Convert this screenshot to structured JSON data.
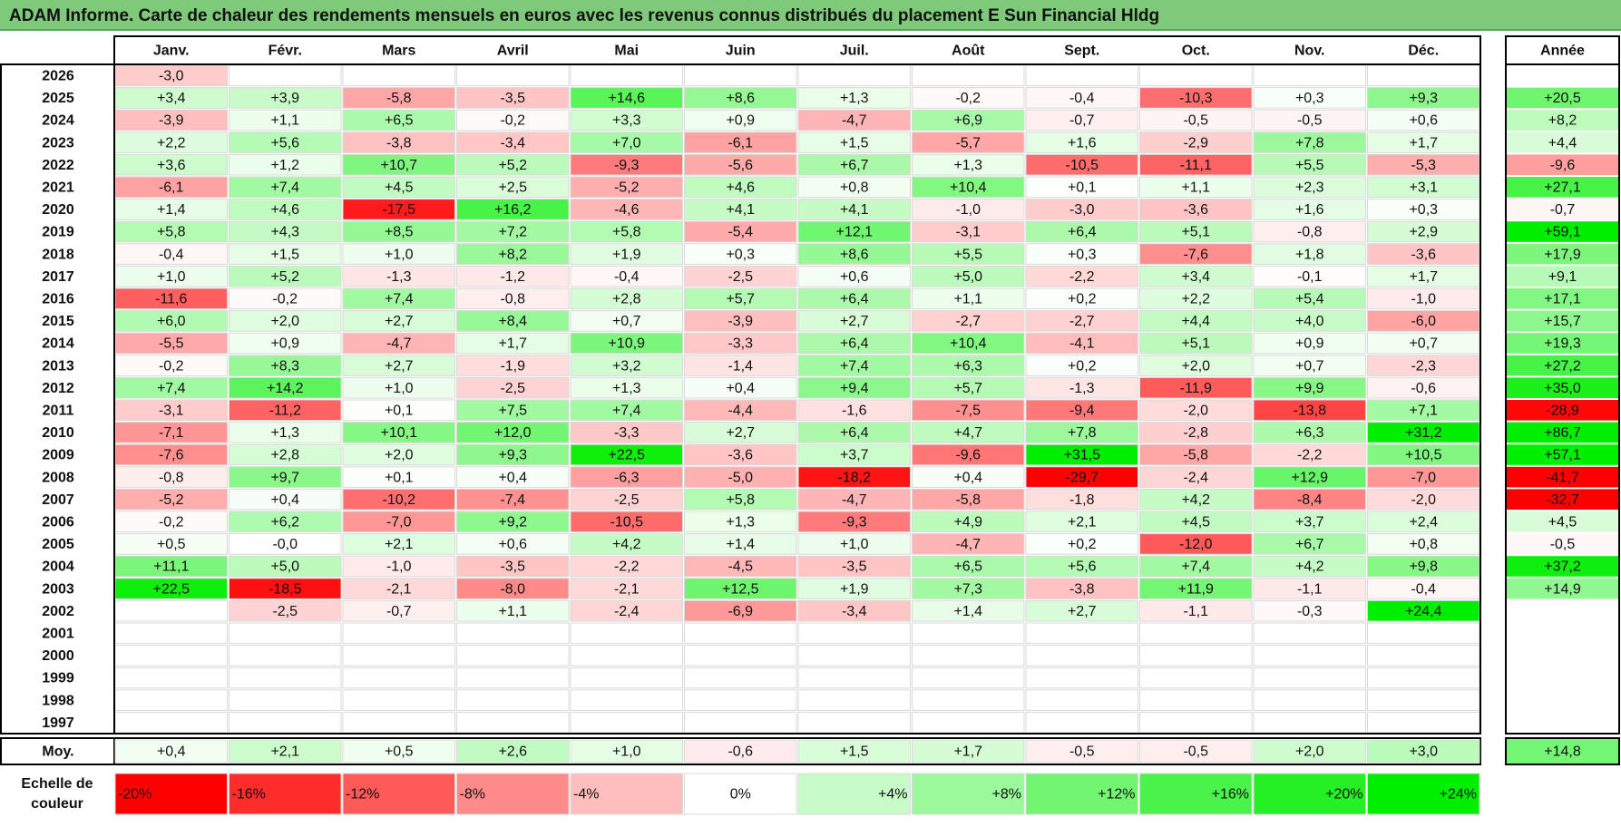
{
  "title": "ADAM Informe. Carte de chaleur des rendements mensuels en euros avec les revenus connus distribués du placement E Sun Financial Hldg",
  "colors": {
    "negative_max": "#ff0000",
    "neutral": "#ffffff",
    "positive_max": "#00ee00",
    "title_bg": "#7fc97a"
  },
  "chart_data": {
    "type": "heatmap",
    "title": "ADAM Informe. Carte de chaleur des rendements mensuels en euros avec les revenus connus distribués du placement E Sun Financial Hldg",
    "months": [
      "Janv.",
      "Févr.",
      "Mars",
      "Avril",
      "Mai",
      "Juin",
      "Juil.",
      "Août",
      "Sept.",
      "Oct.",
      "Nov.",
      "Déc."
    ],
    "annual_label": "Année",
    "rows": [
      {
        "year": "2026",
        "values": [
          "-3,0",
          "",
          "",
          "",
          "",
          "",
          "",
          "",
          "",
          "",
          "",
          ""
        ],
        "annual": ""
      },
      {
        "year": "2025",
        "values": [
          "+3,4",
          "+3,9",
          "-5,8",
          "-3,5",
          "+14,6",
          "+8,6",
          "+1,3",
          "-0,2",
          "-0,4",
          "-10,3",
          "+0,3",
          "+9,3"
        ],
        "annual": "+20,5"
      },
      {
        "year": "2024",
        "values": [
          "-3,9",
          "+1,1",
          "+6,5",
          "-0,2",
          "+3,3",
          "+0,9",
          "-4,7",
          "+6,9",
          "-0,7",
          "-0,5",
          "-0,5",
          "+0,6"
        ],
        "annual": "+8,2"
      },
      {
        "year": "2023",
        "values": [
          "+2,2",
          "+5,6",
          "-3,8",
          "-3,4",
          "+7,0",
          "-6,1",
          "+1,5",
          "-5,7",
          "+1,6",
          "-2,9",
          "+7,8",
          "+1,7"
        ],
        "annual": "+4,4"
      },
      {
        "year": "2022",
        "values": [
          "+3,6",
          "+1,2",
          "+10,7",
          "+5,2",
          "-9,3",
          "-5,6",
          "+6,7",
          "+1,3",
          "-10,5",
          "-11,1",
          "+5,5",
          "-5,3"
        ],
        "annual": "-9,6"
      },
      {
        "year": "2021",
        "values": [
          "-6,1",
          "+7,4",
          "+4,5",
          "+2,5",
          "-5,2",
          "+4,6",
          "+0,8",
          "+10,4",
          "+0,1",
          "+1,1",
          "+2,3",
          "+3,1"
        ],
        "annual": "+27,1"
      },
      {
        "year": "2020",
        "values": [
          "+1,4",
          "+4,6",
          "-17,5",
          "+16,2",
          "-4,6",
          "+4,1",
          "+4,1",
          "-1,0",
          "-3,0",
          "-3,6",
          "+1,6",
          "+0,3"
        ],
        "annual": "-0,7"
      },
      {
        "year": "2019",
        "values": [
          "+5,8",
          "+4,3",
          "+8,5",
          "+7,2",
          "+5,8",
          "-5,4",
          "+12,1",
          "-3,1",
          "+6,4",
          "+5,1",
          "-0,8",
          "+2,9"
        ],
        "annual": "+59,1"
      },
      {
        "year": "2018",
        "values": [
          "-0,4",
          "+1,5",
          "+1,0",
          "+8,2",
          "+1,9",
          "+0,3",
          "+8,6",
          "+5,5",
          "+0,3",
          "-7,6",
          "+1,8",
          "-3,6"
        ],
        "annual": "+17,9"
      },
      {
        "year": "2017",
        "values": [
          "+1,0",
          "+5,2",
          "-1,3",
          "-1,2",
          "-0,4",
          "-2,5",
          "+0,6",
          "+5,0",
          "-2,2",
          "+3,4",
          "-0,1",
          "+1,7"
        ],
        "annual": "+9,1"
      },
      {
        "year": "2016",
        "values": [
          "-11,6",
          "-0,2",
          "+7,4",
          "-0,8",
          "+2,8",
          "+5,7",
          "+6,4",
          "+1,1",
          "+0,2",
          "+2,2",
          "+5,4",
          "-1,0"
        ],
        "annual": "+17,1"
      },
      {
        "year": "2015",
        "values": [
          "+6,0",
          "+2,0",
          "+2,7",
          "+8,4",
          "+0,7",
          "-3,9",
          "+2,7",
          "-2,7",
          "-2,7",
          "+4,4",
          "+4,0",
          "-6,0"
        ],
        "annual": "+15,7"
      },
      {
        "year": "2014",
        "values": [
          "-5,5",
          "+0,9",
          "-4,7",
          "+1,7",
          "+10,9",
          "-3,3",
          "+6,4",
          "+10,4",
          "-4,1",
          "+5,1",
          "+0,9",
          "+0,7"
        ],
        "annual": "+19,3"
      },
      {
        "year": "2013",
        "values": [
          "-0,2",
          "+8,3",
          "+2,7",
          "-1,9",
          "+3,2",
          "-1,4",
          "+7,4",
          "+6,3",
          "+0,2",
          "+2,0",
          "+0,7",
          "-2,3"
        ],
        "annual": "+27,2"
      },
      {
        "year": "2012",
        "values": [
          "+7,4",
          "+14,2",
          "+1,0",
          "-2,5",
          "+1,3",
          "+0,4",
          "+9,4",
          "+5,7",
          "-1,3",
          "-11,9",
          "+9,9",
          "-0,6"
        ],
        "annual": "+35,0"
      },
      {
        "year": "2011",
        "values": [
          "-3,1",
          "-11,2",
          "+0,1",
          "+7,5",
          "+7,4",
          "-4,4",
          "-1,6",
          "-7,5",
          "-9,4",
          "-2,0",
          "-13,8",
          "+7,1"
        ],
        "annual": "-28,9"
      },
      {
        "year": "2010",
        "values": [
          "-7,1",
          "+1,3",
          "+10,1",
          "+12,0",
          "-3,3",
          "+2,7",
          "+6,4",
          "+4,7",
          "+7,8",
          "-2,8",
          "+6,3",
          "+31,2"
        ],
        "annual": "+86,7"
      },
      {
        "year": "2009",
        "values": [
          "-7,6",
          "+2,8",
          "+2,0",
          "+9,3",
          "+22,5",
          "-3,6",
          "+3,7",
          "-9,6",
          "+31,5",
          "-5,8",
          "-2,2",
          "+10,5"
        ],
        "annual": "+57,1"
      },
      {
        "year": "2008",
        "values": [
          "-0,8",
          "+9,7",
          "+0,1",
          "+0,4",
          "-6,3",
          "-5,0",
          "-18,2",
          "+0,4",
          "-29,7",
          "-2,4",
          "+12,9",
          "-7,0"
        ],
        "annual": "-41,7"
      },
      {
        "year": "2007",
        "values": [
          "-5,2",
          "+0,4",
          "-10,2",
          "-7,4",
          "-2,5",
          "+5,8",
          "-4,7",
          "-5,8",
          "-1,8",
          "+4,2",
          "-8,4",
          "-2,0"
        ],
        "annual": "-32,7"
      },
      {
        "year": "2006",
        "values": [
          "-0,2",
          "+6,2",
          "-7,0",
          "+9,2",
          "-10,5",
          "+1,3",
          "-9,3",
          "+4,9",
          "+2,1",
          "+4,5",
          "+3,7",
          "+2,4"
        ],
        "annual": "+4,5"
      },
      {
        "year": "2005",
        "values": [
          "+0,5",
          "-0,0",
          "+2,1",
          "+0,6",
          "+4,2",
          "+1,4",
          "+1,0",
          "-4,7",
          "+0,2",
          "-12,0",
          "+6,7",
          "+0,8"
        ],
        "annual": "-0,5"
      },
      {
        "year": "2004",
        "values": [
          "+11,1",
          "+5,0",
          "-1,0",
          "-3,5",
          "-2,2",
          "-4,5",
          "-3,5",
          "+6,5",
          "+5,6",
          "+7,4",
          "+4,2",
          "+9,8"
        ],
        "annual": "+37,2"
      },
      {
        "year": "2003",
        "values": [
          "+22,5",
          "-18,5",
          "-2,1",
          "-8,0",
          "-2,1",
          "+12,5",
          "+1,9",
          "+7,3",
          "-3,8",
          "+11,9",
          "-1,1",
          "-0,4"
        ],
        "annual": "+14,9"
      },
      {
        "year": "2002",
        "values": [
          "",
          "-2,5",
          "-0,7",
          "+1,1",
          "-2,4",
          "-6,9",
          "-3,4",
          "+1,4",
          "+2,7",
          "-1,1",
          "-0,3",
          "+24,4"
        ],
        "annual": ""
      },
      {
        "year": "2001",
        "values": [
          "",
          "",
          "",
          "",
          "",
          "",
          "",
          "",
          "",
          "",
          "",
          ""
        ],
        "annual": ""
      },
      {
        "year": "2000",
        "values": [
          "",
          "",
          "",
          "",
          "",
          "",
          "",
          "",
          "",
          "",
          "",
          ""
        ],
        "annual": ""
      },
      {
        "year": "1999",
        "values": [
          "",
          "",
          "",
          "",
          "",
          "",
          "",
          "",
          "",
          "",
          "",
          ""
        ],
        "annual": ""
      },
      {
        "year": "1998",
        "values": [
          "",
          "",
          "",
          "",
          "",
          "",
          "",
          "",
          "",
          "",
          "",
          ""
        ],
        "annual": ""
      },
      {
        "year": "1997",
        "values": [
          "",
          "",
          "",
          "",
          "",
          "",
          "",
          "",
          "",
          "",
          "",
          ""
        ],
        "annual": ""
      }
    ],
    "average": {
      "label": "Moy.",
      "values": [
        "+0,4",
        "+2,1",
        "+0,5",
        "+2,6",
        "+1,0",
        "-0,6",
        "+1,5",
        "+1,7",
        "-0,5",
        "-0,5",
        "+2,0",
        "+3,0"
      ],
      "annual": "+14,8"
    },
    "color_scale": {
      "label_lines": [
        "Echelle de",
        "couleur"
      ],
      "steps": [
        "-20%",
        "-16%",
        "-12%",
        "-8%",
        "-4%",
        "0%",
        "+4%",
        "+8%",
        "+12%",
        "+16%",
        "+20%",
        "+24%"
      ]
    }
  }
}
